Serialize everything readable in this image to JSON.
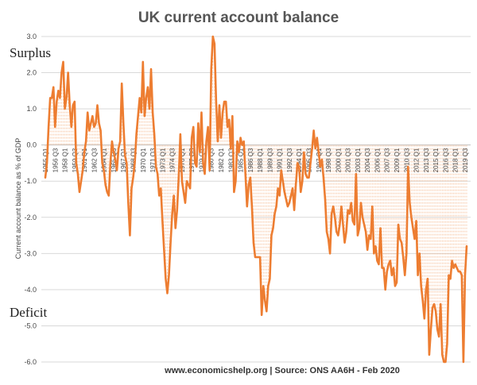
{
  "chart_data": {
    "type": "line",
    "title": "UK current account balance",
    "xlabel": "",
    "ylabel": "Current account balance as % of GDP",
    "ylim": [
      -6.0,
      3.0
    ],
    "yticks": [
      "3.0",
      "2.0",
      "1.0",
      "0.0",
      "-1.0",
      "-2.0",
      "-3.0",
      "-4.0",
      "-5.0",
      "-6.0"
    ],
    "xticks": [
      "1955 Q1",
      "1956 Q3",
      "1958 Q1",
      "1959 Q3",
      "1961 Q1",
      "1962 Q3",
      "1964 Q1",
      "1965 Q3",
      "1967 Q1",
      "1968 Q3",
      "1970 Q1",
      "1971 Q3",
      "1973 Q1",
      "1974 Q3",
      "1976 Q1",
      "1977 Q3",
      "1979 Q1",
      "1980 Q3",
      "1982 Q1",
      "1983 Q3",
      "1985 Q1",
      "1986 Q3",
      "1988 Q1",
      "1989 Q3",
      "1991 Q1",
      "1992 Q3",
      "1994 Q1",
      "1995 Q3",
      "1997 Q1",
      "1998 Q3",
      "2000 Q1",
      "2001 Q3",
      "2003 Q1",
      "2004 Q3",
      "2006 Q1",
      "2007 Q3",
      "2009 Q1",
      "2010 Q3",
      "2012 Q1",
      "2013 Q3",
      "2015 Q1",
      "2016 Q3",
      "2018 Q1",
      "2019 Q3"
    ],
    "series": [
      {
        "name": "Current account balance (% of GDP)",
        "color": "#ed7d31",
        "start": "1955 Q1",
        "frequency": "quarterly",
        "values": [
          -0.9,
          -0.5,
          0.5,
          1.3,
          1.3,
          1.6,
          0.5,
          1.2,
          1.5,
          1.3,
          2.0,
          2.3,
          1.0,
          1.3,
          2.0,
          1.1,
          0.5,
          1.1,
          1.2,
          -0.5,
          -0.8,
          -1.3,
          -1.0,
          -0.7,
          -0.2,
          0.1,
          0.9,
          0.4,
          0.6,
          0.8,
          0.5,
          0.6,
          1.1,
          0.6,
          0.4,
          -0.5,
          -0.7,
          -1.1,
          -1.3,
          -1.4,
          -0.5,
          0.1,
          -0.2,
          -0.4,
          -0.7,
          -0.1,
          0.1,
          1.7,
          0.6,
          -0.3,
          -0.5,
          -1.6,
          -2.5,
          -1.2,
          -0.9,
          -0.5,
          0.3,
          0.8,
          1.3,
          0.9,
          2.3,
          0.8,
          1.3,
          1.6,
          1.0,
          2.1,
          0.9,
          0.3,
          -0.6,
          -0.8,
          -1.4,
          -1.2,
          -2.1,
          -2.9,
          -3.7,
          -4.1,
          -3.6,
          -2.7,
          -1.9,
          -1.4,
          -2.3,
          -1.8,
          -0.9,
          0.3,
          -1.0,
          -1.3,
          -1.6,
          -1.0,
          -1.1,
          -1.2,
          0.2,
          0.5,
          -0.5,
          -0.6,
          0.6,
          -0.2,
          0.9,
          -0.5,
          -0.8,
          0.1,
          0.5,
          -0.7,
          2.1,
          3.0,
          2.8,
          1.2,
          0.1,
          1.1,
          0.2,
          0.9,
          1.2,
          1.2,
          0.5,
          0.7,
          -0.1,
          0.8,
          -1.3,
          -1.0,
          0.1,
          -0.2,
          0.2,
          0.0,
          0.1,
          -0.8,
          -1.7,
          -1.1,
          -0.9,
          -1.7,
          -2.7,
          -3.1,
          -3.1,
          -3.1,
          -3.1,
          -4.7,
          -3.9,
          -4.3,
          -4.6,
          -3.9,
          -3.7,
          -2.5,
          -2.3,
          -1.9,
          -1.7,
          -1.2,
          -1.4,
          -0.7,
          -1.0,
          -1.3,
          -1.5,
          -1.7,
          -1.6,
          -1.4,
          -1.2,
          -1.8,
          -1.1,
          -0.5,
          -0.6,
          -1.3,
          -1.0,
          -0.2,
          -0.8,
          -0.9,
          -0.9,
          -0.5,
          -0.1,
          0.4,
          -0.1,
          0.2,
          -0.2,
          -0.6,
          -0.4,
          -0.9,
          -1.5,
          -2.4,
          -2.6,
          -3.0,
          -1.9,
          -1.7,
          -2.0,
          -2.4,
          -2.5,
          -2.2,
          -1.7,
          -2.2,
          -2.7,
          -2.4,
          -1.8,
          -1.9,
          -1.6,
          -2.1,
          -2.2,
          -0.8,
          -2.5,
          -2.3,
          -1.6,
          -2.0,
          -2.2,
          -2.4,
          -2.9,
          -2.5,
          -2.6,
          -1.7,
          -3.0,
          -2.8,
          -3.2,
          -3.3,
          -2.3,
          -3.4,
          -3.4,
          -4.0,
          -3.5,
          -3.3,
          -3.2,
          -3.6,
          -3.4,
          -3.9,
          -3.8,
          -2.2,
          -2.6,
          -2.7,
          -3.1,
          -3.6,
          -3.0,
          -0.6,
          -1.6,
          -2.0,
          -2.3,
          -2.6,
          -2.1,
          -3.6,
          -3.0,
          -3.9,
          -4.3,
          -4.8,
          -4.0,
          -3.7,
          -5.8,
          -5.1,
          -4.5,
          -4.4,
          -4.6,
          -5.1,
          -5.3,
          -4.4,
          -5.8,
          -6.0,
          -6.0,
          -5.5,
          -3.6,
          -3.7,
          -3.2,
          -3.4,
          -3.3,
          -3.4,
          -3.5,
          -3.5,
          -3.6,
          -6.0,
          -3.6,
          -2.8
        ]
      }
    ],
    "annotations": [
      "Surplus",
      "Deficit"
    ],
    "source": "www.economicshelp.org | Source: ONS AA6H - Feb 2020"
  }
}
